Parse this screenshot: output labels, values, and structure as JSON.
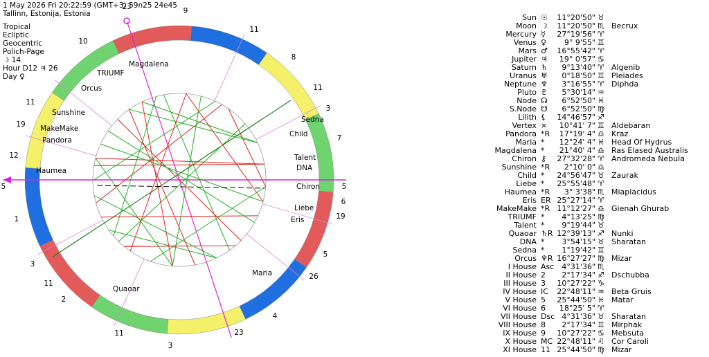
{
  "header": {
    "date_line": "1 May 2026  Fri  20:22:59 (GMT+3) 59n25  24e45",
    "location": "Tallinn, Estonija, Estonia",
    "settings": [
      "Tropical",
      "Ecliptic",
      "Geocentric",
      "Polich-Page",
      "☽ 14",
      "Hour D12 ♃ 26",
      "Day ♀"
    ]
  },
  "wheel": {
    "labels": [
      "1",
      "2",
      "3",
      "4",
      "5",
      "6",
      "7",
      "8",
      "9",
      "10",
      "11",
      "12",
      "5",
      "3",
      "11",
      "11",
      "23",
      "26",
      "19",
      "5",
      "3",
      "11",
      "11",
      "23",
      "19",
      "Magdalena",
      "TRIUMF",
      "Orcus",
      "Sunshine",
      "MakeMake",
      "Pandora",
      "Haumea",
      "Sedna",
      "Child",
      "Talent",
      "DNA",
      "Chiron",
      "Liebe",
      "Eris",
      "Maria",
      "Quaoar"
    ]
  },
  "table": {
    "rows": [
      [
        "Sun",
        "☉",
        "11°20'50\"",
        "♉"
      ],
      [
        "Moon",
        "☽",
        "11°20'50\"",
        "♏",
        "Becrux"
      ],
      [
        "Mercury",
        "☿",
        "27°19'56\"",
        "♈"
      ],
      [
        "Venus",
        "♀",
        "9° 9'55\"",
        "♊"
      ],
      [
        "Mars",
        "♂",
        "16°55'42\"",
        "♈"
      ],
      [
        "Jupiter",
        "♃",
        "19° 0'57\"",
        "♋"
      ],
      [
        "Saturn",
        "♄",
        "9°13'40\"",
        "♈",
        "Algenib"
      ],
      [
        "Uranus",
        "♅",
        "0°18'50\"",
        "♊",
        "Pleiades"
      ],
      [
        "Neptune",
        "♆",
        "3°16'55\"",
        "♈",
        "Diphda"
      ],
      [
        "Pluto",
        "♇",
        "5°30'14\"",
        "♒"
      ],
      [
        "Node",
        "☊",
        "6°52'50\"",
        "♓"
      ],
      [
        "S.Node",
        "☋",
        "6°52'50\"",
        "♍"
      ],
      [
        "Lilith",
        "⚸",
        "14°46'57\"",
        "♐"
      ],
      [
        "Vertex",
        "×",
        "10°41' 7\"",
        "♊",
        "Aldebaran"
      ],
      [
        "Pandora",
        "*R",
        "17°19' 4\"",
        "♎",
        "Kraz"
      ],
      [
        "Maria",
        "*",
        "12°24' 4\"",
        "♓",
        "Head Of Hydrus"
      ],
      [
        "Magdalena",
        "*",
        "21°40' 4\"",
        "♎",
        "Ras Elased Australis"
      ],
      [
        "Chiron",
        "⚷",
        "27°32'28\"",
        "♈",
        "Andromeda Nebula"
      ],
      [
        "Sunshine",
        "*R",
        "2°10' 0\"",
        "♎"
      ],
      [
        "Child",
        "*",
        "24°56'47\"",
        "♉",
        "Zaurak"
      ],
      [
        "Liebe",
        "*",
        "25°55'48\"",
        "♈"
      ],
      [
        "Haumea",
        "*R",
        "3° 3'38\"",
        "♏",
        "Miaplacidus"
      ],
      [
        "Eris",
        "ER",
        "25°27'14\"",
        "♈"
      ],
      [
        "MakeMake",
        "*R",
        "11°12'27\"",
        "♎",
        "Gienah Ghurab"
      ],
      [
        "TRIUMF",
        "*",
        "4°13'25\"",
        "♍"
      ],
      [
        "Talent",
        "*",
        "9°19'44\"",
        "♉"
      ],
      [
        "Quaoar",
        "♄R",
        "12°39'13\"",
        "♐",
        "Nunki"
      ],
      [
        "DNA",
        "*",
        "3°54'15\"",
        "♉",
        "Sharatan"
      ],
      [
        "Sedna",
        "*",
        "1°19'42\"",
        "♊"
      ],
      [
        "Orcus",
        "♆R",
        "16°27'27\"",
        "♍",
        "Mizar"
      ],
      [
        "I House",
        "Asc",
        "4°31'36\"",
        "♏"
      ],
      [
        "II House",
        "2",
        "2°17'34\"",
        "♐",
        "Dschubba"
      ],
      [
        "III House",
        "3",
        "10°27'22\"",
        "♑"
      ],
      [
        "IV House",
        "IC",
        "22°48'11\"",
        "♒",
        "Beta Gruis"
      ],
      [
        "V House",
        "5",
        "25°44'50\"",
        "♓",
        "Matar"
      ],
      [
        "VI House",
        "6",
        "18°25' 5\"",
        "♈"
      ],
      [
        "VII House",
        "Dsc",
        "4°31'36\"",
        "♉",
        "Sharatan"
      ],
      [
        "VIII House",
        "8",
        "2°17'34\"",
        "♊",
        "Mirphak"
      ],
      [
        "IX House",
        "9",
        "10°27'22\"",
        "♋",
        "Mebsuta"
      ],
      [
        "X House",
        "MC",
        "22°48'11\"",
        "♌",
        "Cor Caroli"
      ],
      [
        "XI House",
        "11",
        "25°44'50\"",
        "♍",
        "Mizar"
      ]
    ]
  }
}
